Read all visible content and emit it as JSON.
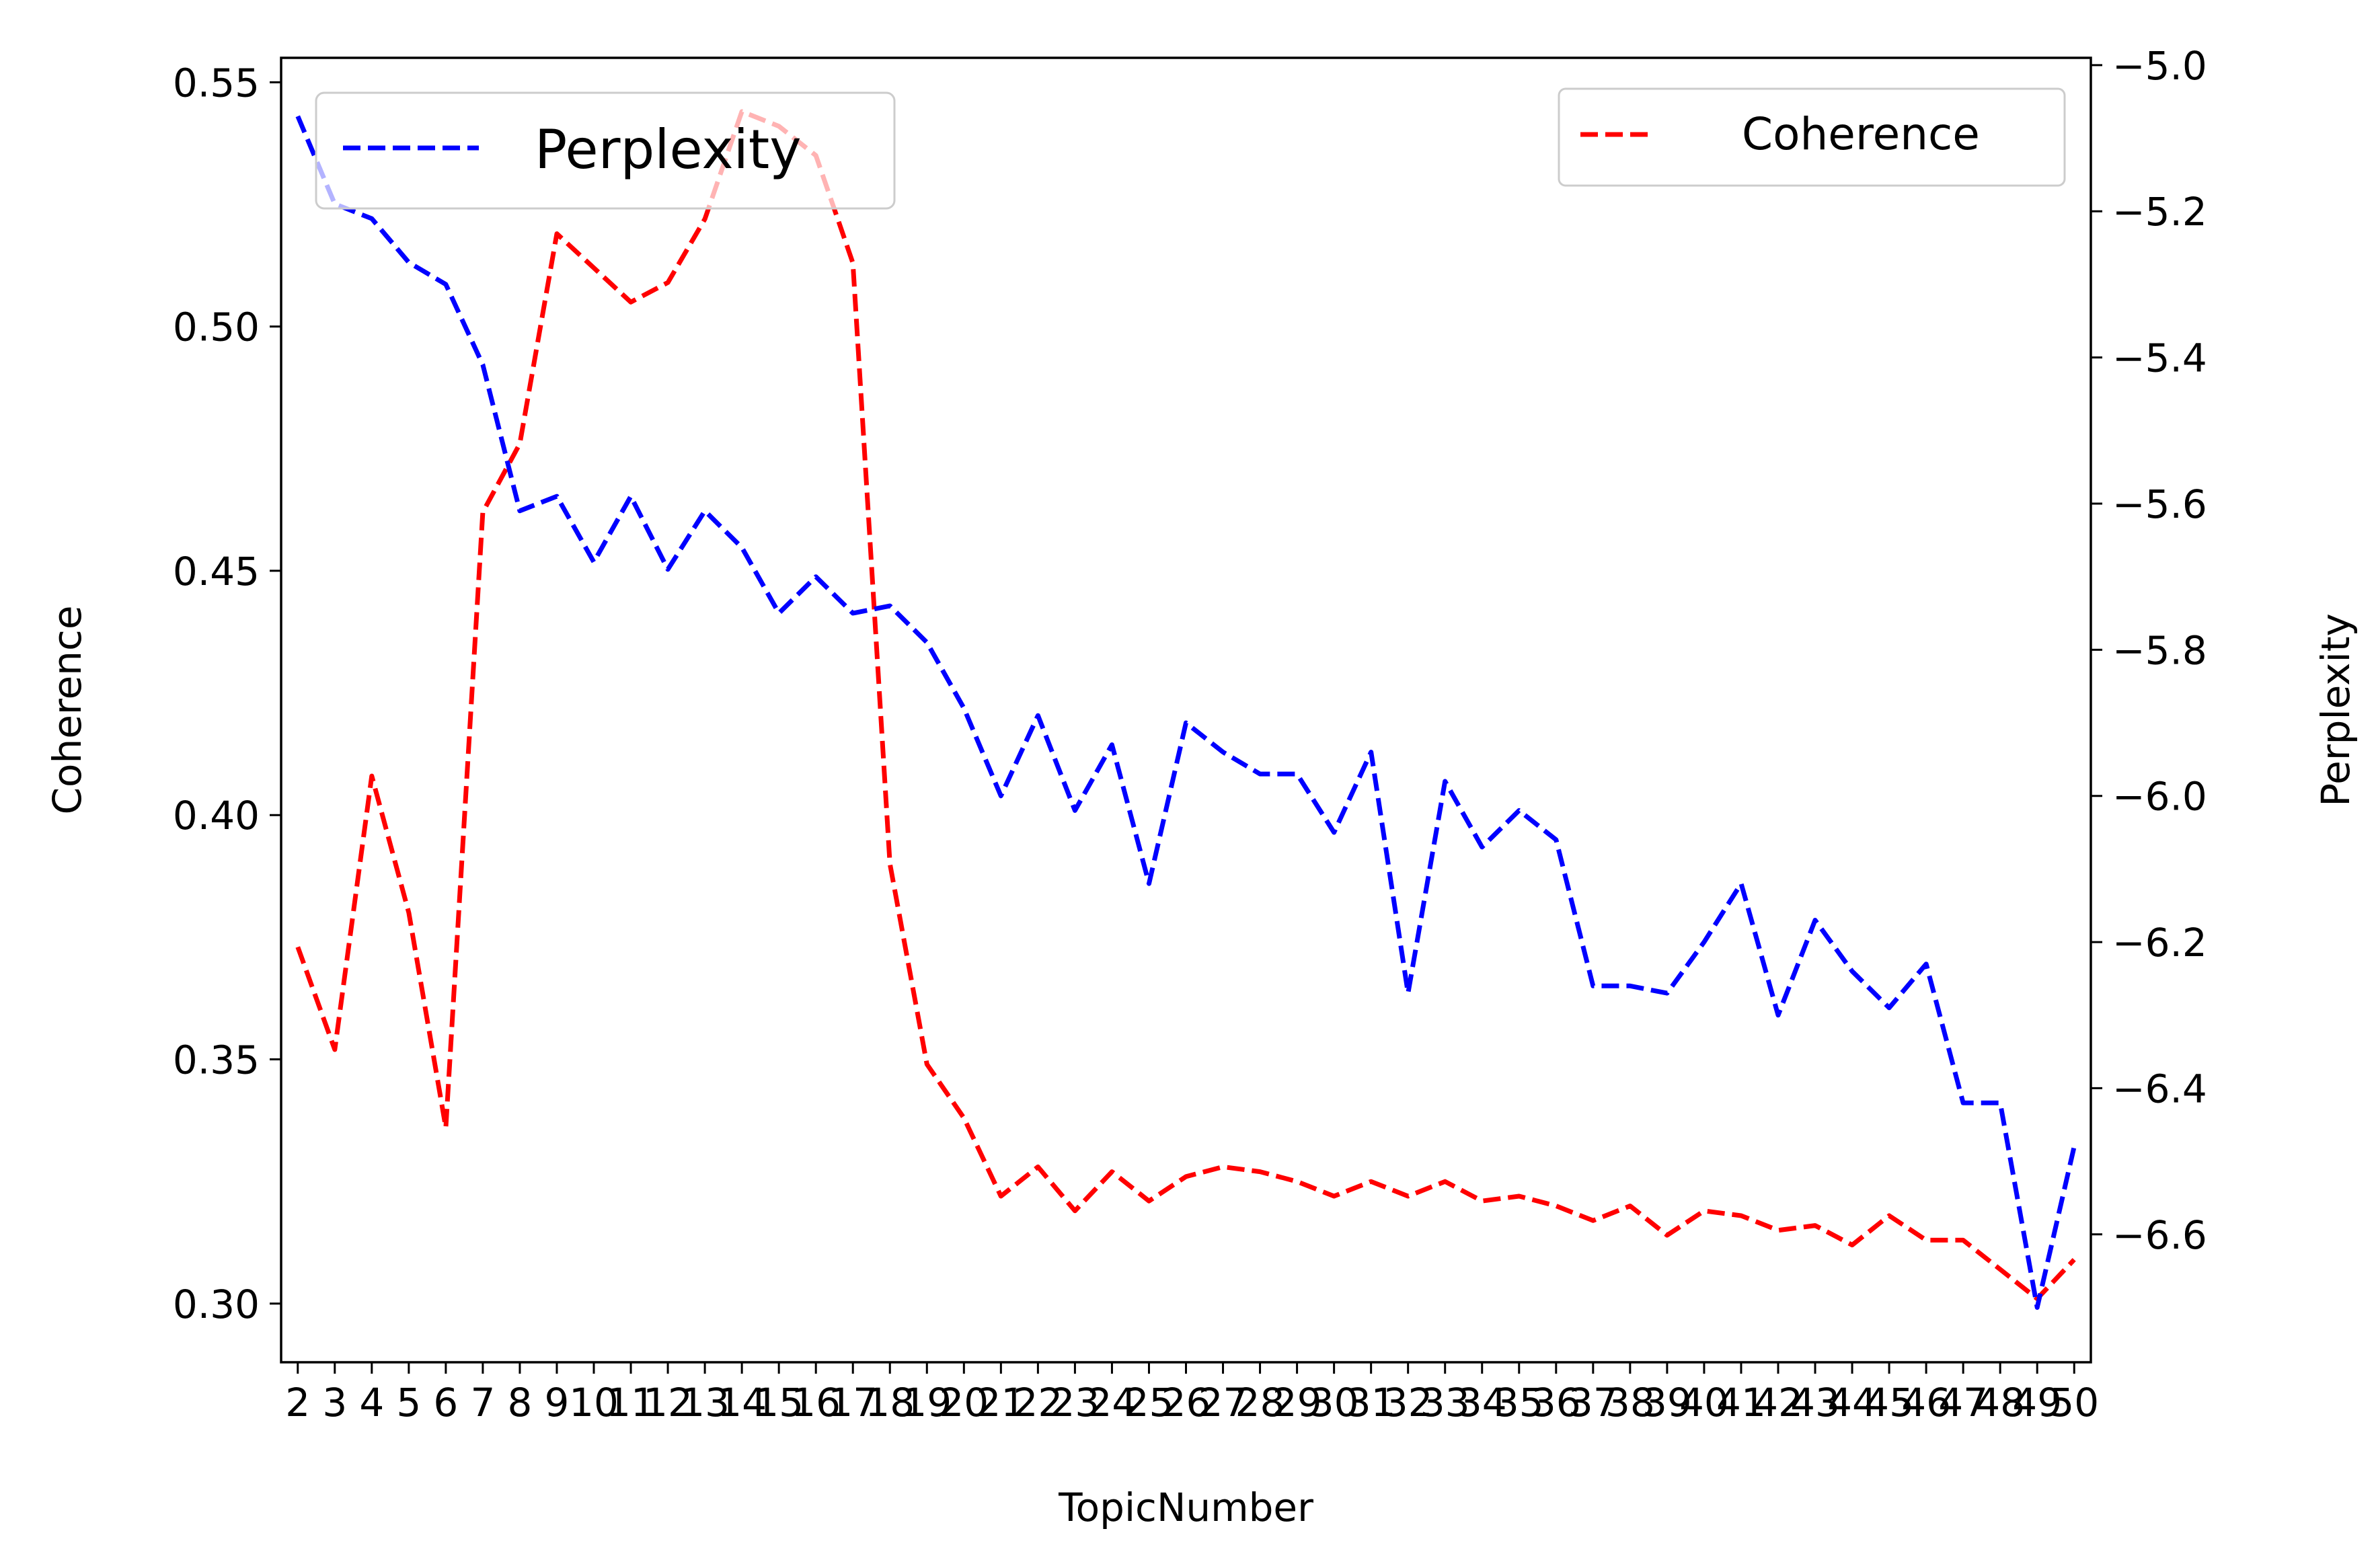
{
  "chart_data": {
    "type": "line",
    "title": "",
    "xlabel": "TopicNumber",
    "ylabel_left": "Coherence",
    "ylabel_right": "Perplexity",
    "x": [
      2,
      3,
      4,
      5,
      6,
      7,
      8,
      9,
      10,
      11,
      12,
      13,
      14,
      15,
      16,
      17,
      18,
      19,
      20,
      21,
      22,
      23,
      24,
      25,
      26,
      27,
      28,
      29,
      30,
      31,
      32,
      33,
      34,
      35,
      36,
      37,
      38,
      39,
      40,
      41,
      42,
      43,
      44,
      45,
      46,
      47,
      48,
      49,
      50
    ],
    "ylim_left": [
      0.288,
      0.555
    ],
    "ylim_right": [
      -6.775,
      -4.99
    ],
    "yticks_left": [
      "0.30",
      "0.35",
      "0.40",
      "0.45",
      "0.50",
      "0.55"
    ],
    "yticks_right": [
      "−5.0",
      "−5.2",
      "−5.4",
      "−5.6",
      "−5.8",
      "−6.0",
      "−6.2",
      "−6.4",
      "−6.6"
    ],
    "series": [
      {
        "name": "Coherence",
        "axis": "left",
        "color": "#ff0000",
        "style": "dashed",
        "values": [
          0.373,
          0.352,
          0.408,
          0.38,
          0.336,
          0.462,
          0.476,
          0.519,
          0.512,
          0.505,
          0.509,
          0.522,
          0.544,
          0.541,
          0.535,
          0.513,
          0.39,
          0.349,
          0.338,
          0.322,
          0.328,
          0.319,
          0.327,
          0.321,
          0.326,
          0.328,
          0.327,
          0.325,
          0.322,
          0.325,
          0.322,
          0.325,
          0.321,
          0.322,
          0.32,
          0.317,
          0.32,
          0.314,
          0.319,
          0.318,
          0.315,
          0.316,
          0.312,
          0.318,
          0.313,
          0.313,
          0.307,
          0.301,
          0.309
        ]
      },
      {
        "name": "Perplexity",
        "axis": "right",
        "color": "#0000ff",
        "style": "dashed",
        "values": [
          -5.07,
          -5.19,
          -5.21,
          -5.27,
          -5.3,
          -5.41,
          -5.61,
          -5.59,
          -5.68,
          -5.59,
          -5.69,
          -5.61,
          -5.66,
          -5.75,
          -5.7,
          -5.75,
          -5.74,
          -5.79,
          -5.88,
          -6.0,
          -5.89,
          -6.02,
          -5.93,
          -6.12,
          -5.9,
          -5.94,
          -5.97,
          -5.97,
          -6.05,
          -5.94,
          -6.27,
          -5.98,
          -6.07,
          -6.02,
          -6.06,
          -6.26,
          -6.26,
          -6.27,
          -6.2,
          -6.12,
          -6.3,
          -6.17,
          -6.24,
          -6.29,
          -6.23,
          -6.42,
          -6.42,
          -6.7,
          -6.48
        ]
      }
    ],
    "legend_left": {
      "label": "Perplexity",
      "placement": "upper-left"
    },
    "legend_right": {
      "label": "Coherence",
      "placement": "upper-right"
    },
    "grid": false
  }
}
